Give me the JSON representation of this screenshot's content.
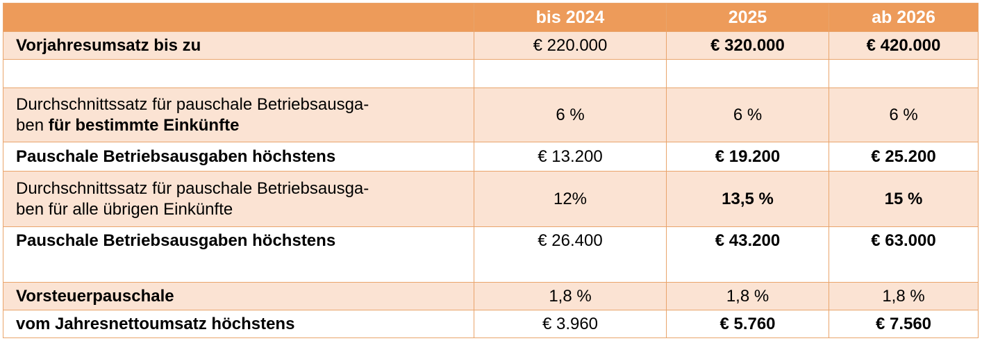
{
  "header": {
    "col0": "",
    "col1": "bis 2024",
    "col2": "2025",
    "col3": "ab 2026"
  },
  "rows": [
    {
      "label": "Vorjahresumsatz bis zu",
      "v1": "€ 220.000",
      "v2": "€ 320.000",
      "v3": "€ 420.000"
    },
    {
      "label": "",
      "v1": "",
      "v2": "",
      "v3": ""
    },
    {
      "label_line1": "Durchschnittssatz für pauschale Betriebsausga-",
      "label_line2_plain": "ben ",
      "label_line2_bold": "für bestimmte Einkünfte",
      "v1": "6 %",
      "v2": "6 %",
      "v3": "6 %"
    },
    {
      "label": "Pauschale Betriebsausgaben höchstens",
      "v1": "€ 13.200",
      "v2": "€ 19.200",
      "v3": "€ 25.200"
    },
    {
      "label_line1": "Durchschnittssatz für pauschale Betriebsausga-",
      "label_line2": "ben für alle übrigen Einkünfte",
      "v1": "12%",
      "v2": "13,5 %",
      "v3": "15 %"
    },
    {
      "label": "Pauschale Betriebsausgaben höchstens",
      "v1": "€ 26.400",
      "v2": "€ 43.200",
      "v3": "€ 63.000"
    },
    {
      "label": "Vorsteuerpauschale",
      "v1": "1,8 %",
      "v2": "1,8 %",
      "v3": "1,8 %"
    },
    {
      "label": "vom Jahresnettoumsatz höchstens",
      "v1": "€ 3.960",
      "v2": "€ 5.760",
      "v3": "€ 7.560"
    }
  ],
  "colors": {
    "header_bg": "#ed9b5a",
    "shaded_row_bg": "#fbe3d3",
    "border": "#e9a46b"
  }
}
